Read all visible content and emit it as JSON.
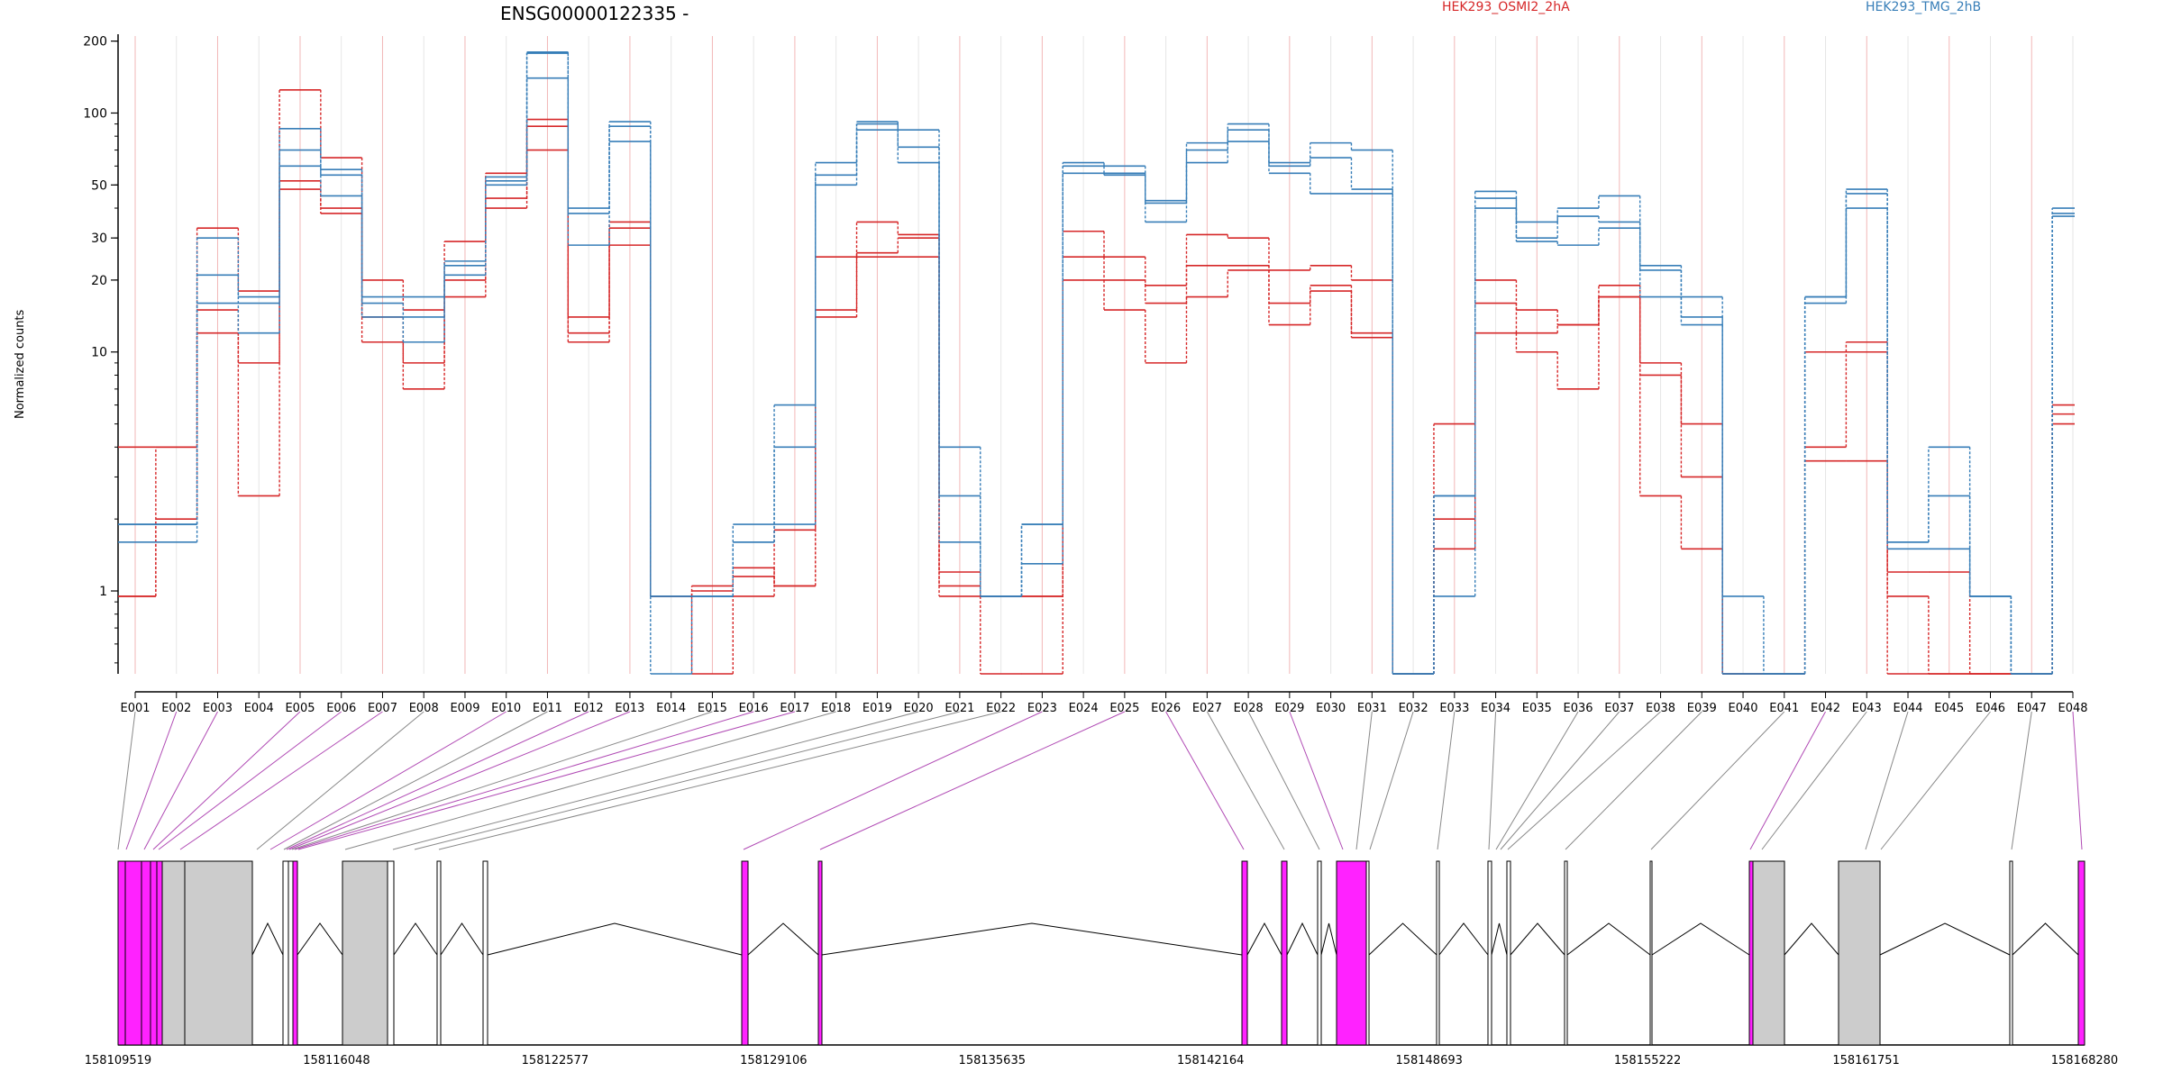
{
  "title": "ENSG00000122335 -",
  "ylabel": "Normalized counts",
  "colors": {
    "red": "#d62728",
    "blue": "#377eb8",
    "magenta": "#ff22ff",
    "grey": "#cccccc",
    "guide_red": "#f2b7b7",
    "guide_grey": "#e6e6e6",
    "link_grey": "#888888",
    "link_magenta": "#b04ab4"
  },
  "chart_data": {
    "type": "line",
    "scale": "log",
    "ylim": [
      0.45,
      210
    ],
    "yticks": [
      1,
      10,
      20,
      30,
      50,
      100,
      200
    ],
    "ytick_labels": [
      "1",
      "10",
      "20",
      "30",
      "50",
      "100",
      "200"
    ],
    "categories": [
      "E001",
      "E002",
      "E003",
      "E004",
      "E005",
      "E006",
      "E007",
      "E008",
      "E009",
      "E010",
      "E011",
      "E012",
      "E013",
      "E014",
      "E015",
      "E016",
      "E017",
      "E018",
      "E019",
      "E020",
      "E021",
      "E022",
      "E023",
      "E024",
      "E025",
      "E026",
      "E027",
      "E028",
      "E029",
      "E030",
      "E031",
      "E032",
      "E033",
      "E034",
      "E035",
      "E036",
      "E037",
      "E038",
      "E039",
      "E040",
      "E041",
      "E042",
      "E043",
      "E044",
      "E045",
      "E046",
      "E047",
      "E048"
    ],
    "series": [
      {
        "name": "HEK293_OSMI2_2hA",
        "color": "#d62728",
        "values": [
          4,
          4,
          33,
          18,
          125,
          65,
          20,
          15,
          29,
          56,
          94,
          14,
          35,
          0.95,
          1.05,
          1.15,
          1.05,
          25,
          35,
          31,
          1.2,
          0.95,
          0.95,
          32,
          25,
          19,
          31,
          30,
          22,
          23,
          20,
          0.45,
          5,
          20,
          15,
          13,
          19,
          9,
          5,
          0.45,
          0.45,
          10,
          11,
          1.2,
          1.2,
          0.45,
          0.45,
          6
        ]
      },
      {
        "name": "HEK293_OSMI2_2hA",
        "color": "#d62728",
        "values": [
          0.95,
          4,
          15,
          9,
          52,
          40,
          14,
          9,
          20,
          44,
          88,
          12,
          33,
          0.95,
          1,
          1.25,
          1.05,
          15,
          26,
          30,
          1.05,
          0.95,
          0.95,
          25,
          20,
          16,
          23,
          23,
          16,
          19,
          12,
          0.45,
          2,
          16,
          12,
          13,
          17,
          8,
          3,
          0.45,
          0.45,
          4,
          10,
          0.95,
          0.45,
          0.45,
          0.45,
          5.5
        ]
      },
      {
        "name": "HEK293_OSMI2_2hA",
        "color": "#d62728",
        "values": [
          0.95,
          2,
          12,
          2.5,
          48,
          38,
          11,
          7,
          17,
          40,
          70,
          11,
          28,
          0.95,
          0.45,
          0.95,
          1.8,
          14,
          25,
          25,
          0.95,
          0.45,
          0.45,
          20,
          15,
          9,
          17,
          22,
          13,
          18,
          11.5,
          0.45,
          1.5,
          12,
          10,
          7,
          17,
          2.5,
          1.5,
          0.45,
          0.45,
          3.5,
          3.5,
          0.45,
          0.45,
          0.45,
          0.45,
          5
        ]
      },
      {
        "name": "HEK293_TMG_2hB",
        "color": "#377eb8",
        "values": [
          1.9,
          1.9,
          21,
          17,
          86,
          58,
          17,
          17,
          24,
          54,
          180,
          40,
          92,
          0.95,
          0.95,
          1.9,
          6,
          62,
          92,
          85,
          4,
          0.95,
          1.9,
          62,
          60,
          43,
          75,
          90,
          62,
          75,
          70,
          0.45,
          2.5,
          47,
          35,
          40,
          45,
          23,
          17,
          0.95,
          0.45,
          17,
          48,
          1.6,
          4,
          0.95,
          0.45,
          40
        ]
      },
      {
        "name": "HEK293_TMG_2hB",
        "color": "#377eb8",
        "values": [
          1.9,
          1.9,
          16,
          16,
          70,
          55,
          16,
          14,
          23,
          52,
          178,
          38,
          88,
          0.95,
          0.95,
          1.6,
          4,
          55,
          90,
          72,
          2.5,
          0.95,
          1.9,
          60,
          56,
          42,
          70,
          85,
          60,
          65,
          48,
          0.45,
          2.5,
          44,
          30,
          37,
          35,
          22,
          14,
          0.45,
          0.45,
          17,
          46,
          1.6,
          2.5,
          0.95,
          0.45,
          38
        ]
      },
      {
        "name": "HEK293_TMG_2hB",
        "color": "#377eb8",
        "values": [
          1.6,
          1.6,
          30,
          12,
          60,
          45,
          14,
          11,
          21,
          50,
          140,
          28,
          76,
          0.45,
          0.95,
          1.6,
          1.9,
          50,
          85,
          62,
          1.6,
          0.95,
          1.3,
          56,
          55,
          35,
          62,
          76,
          56,
          46,
          46,
          0.45,
          0.95,
          40,
          29,
          28,
          33,
          17,
          13,
          0.45,
          0.45,
          16,
          40,
          1.5,
          1.5,
          0.95,
          0.45,
          37
        ]
      }
    ],
    "legend": [
      "HEK293_OSMI2_2hA",
      "HEK293_TMG_2hB"
    ],
    "genome_ticks": [
      "158109519",
      "158116048",
      "158122577",
      "158129106",
      "158135635",
      "158142164",
      "158148693",
      "158155222",
      "158161751",
      "158168280"
    ]
  },
  "gene_model": {
    "blocks": [
      {
        "x0": 131,
        "x1": 139,
        "c": "m"
      },
      {
        "x0": 139,
        "x1": 157,
        "c": "m"
      },
      {
        "x0": 157,
        "x1": 167,
        "c": "m"
      },
      {
        "x0": 167,
        "x1": 174,
        "c": "m"
      },
      {
        "x0": 174,
        "x1": 180,
        "c": "m"
      },
      {
        "x0": 180,
        "x1": 205,
        "c": "g"
      },
      {
        "x0": 205,
        "x1": 280,
        "c": "g"
      },
      {
        "x0": 314,
        "x1": 320,
        "c": "w"
      },
      {
        "x0": 320,
        "x1": 325,
        "c": "w"
      },
      {
        "x0": 325,
        "x1": 330,
        "c": "m"
      },
      {
        "x0": 380,
        "x1": 430,
        "c": "g"
      },
      {
        "x0": 430,
        "x1": 437,
        "c": "w"
      },
      {
        "x0": 485,
        "x1": 489,
        "c": "w"
      },
      {
        "x0": 536,
        "x1": 541,
        "c": "w"
      },
      {
        "x0": 823,
        "x1": 830,
        "c": "m"
      },
      {
        "x0": 908,
        "x1": 912,
        "c": "m"
      },
      {
        "x0": 1378,
        "x1": 1384,
        "c": "m"
      },
      {
        "x0": 1422,
        "x1": 1428,
        "c": "m"
      },
      {
        "x0": 1462,
        "x1": 1466,
        "c": "w"
      },
      {
        "x0": 1483,
        "x1": 1516,
        "c": "m"
      },
      {
        "x0": 1516,
        "x1": 1519,
        "c": "w"
      },
      {
        "x0": 1594,
        "x1": 1597,
        "c": "w"
      },
      {
        "x0": 1651,
        "x1": 1655,
        "c": "w"
      },
      {
        "x0": 1672,
        "x1": 1676,
        "c": "w"
      },
      {
        "x0": 1736,
        "x1": 1739,
        "c": "w"
      },
      {
        "x0": 1831,
        "x1": 1833,
        "c": "w"
      },
      {
        "x0": 1941,
        "x1": 1945,
        "c": "m"
      },
      {
        "x0": 1945,
        "x1": 1980,
        "c": "g"
      },
      {
        "x0": 2040,
        "x1": 2086,
        "c": "g"
      },
      {
        "x0": 2230,
        "x1": 2233,
        "c": "w"
      },
      {
        "x0": 2306,
        "x1": 2313,
        "c": "m"
      }
    ],
    "introns": [
      [
        180,
        0
      ],
      [
        280,
        314
      ],
      [
        330,
        380
      ],
      [
        437,
        485
      ],
      [
        489,
        536
      ],
      [
        541,
        823
      ],
      [
        830,
        908
      ],
      [
        912,
        1378
      ],
      [
        1384,
        1422
      ],
      [
        1428,
        1462
      ],
      [
        1466,
        1483
      ],
      [
        1519,
        1594
      ],
      [
        1597,
        1651
      ],
      [
        1655,
        1672
      ],
      [
        1676,
        1736
      ],
      [
        1739,
        1831
      ],
      [
        1833,
        1941
      ],
      [
        1980,
        2040
      ],
      [
        2086,
        2230
      ],
      [
        2233,
        2306
      ]
    ],
    "link_targets": [
      131,
      140,
      160,
      170,
      176,
      200,
      285,
      300,
      315,
      318,
      321,
      324,
      327,
      331,
      383,
      436,
      460,
      487,
      825,
      910,
      1380,
      1425,
      1464,
      1490,
      1505,
      1520,
      1595,
      1652,
      1660,
      1665,
      1673,
      1737,
      1832,
      1942,
      1955,
      2070,
      2087,
      2232,
      2310
    ],
    "link_colors": [
      "k",
      "m",
      "m",
      "m",
      "m",
      "m",
      "k",
      "m",
      "k",
      "m",
      "m",
      "k",
      "m",
      "m",
      "k",
      "k",
      "k",
      "k",
      "m",
      "m",
      "m",
      "k",
      "k",
      "m",
      "k",
      "k",
      "k",
      "k",
      "k",
      "k",
      "k",
      "k",
      "k",
      "m",
      "k",
      "k",
      "k",
      "k",
      "m"
    ]
  }
}
